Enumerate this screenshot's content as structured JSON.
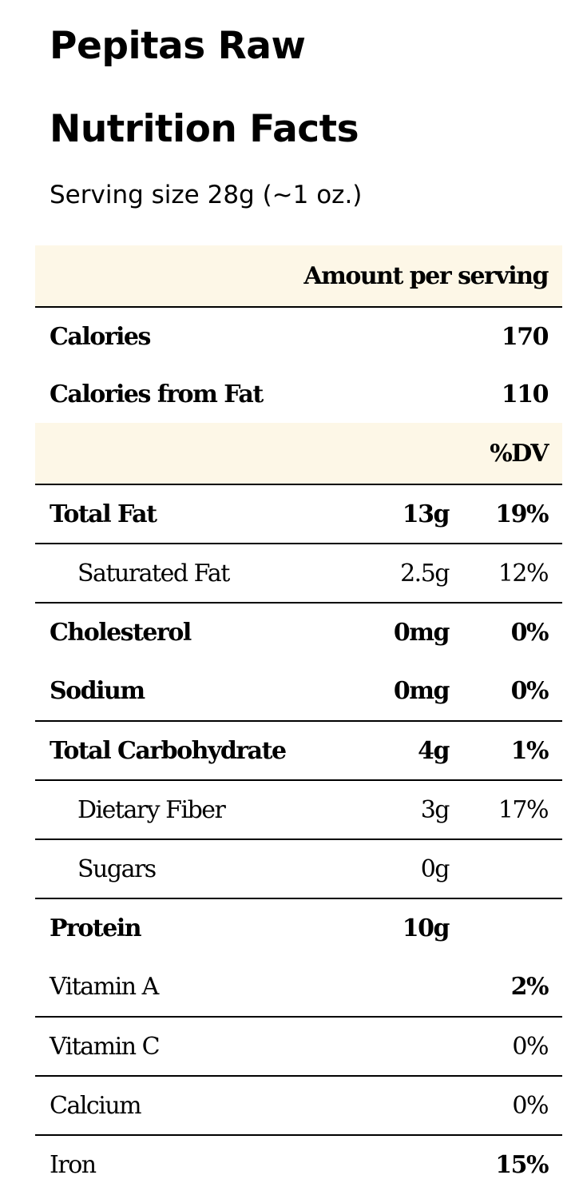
{
  "product": "Pepitas Raw",
  "heading": "Nutrition Facts",
  "serving_size": "Serving size 28g (~1 oz.)",
  "table": {
    "amount_header": "Amount per serving",
    "dv_header": "%DV",
    "calories": {
      "label": "Calories",
      "value": "170"
    },
    "calories_fat": {
      "label": "Calories from Fat",
      "value": "110"
    },
    "nutrients": [
      {
        "label": "Total Fat",
        "amount": "13g",
        "dv": "19%"
      },
      {
        "label": "Saturated Fat",
        "amount": "2.5g",
        "dv": "12%"
      },
      {
        "label": "Cholesterol",
        "amount": "0mg",
        "dv": "0%"
      },
      {
        "label": "Sodium",
        "amount": "0mg",
        "dv": "0%"
      },
      {
        "label": "Total Carbohydrate",
        "amount": "4g",
        "dv": "1%"
      },
      {
        "label": "Dietary Fiber",
        "amount": "3g",
        "dv": "17%"
      },
      {
        "label": "Sugars",
        "amount": "0g",
        "dv": ""
      },
      {
        "label": "Protein",
        "amount": "10g",
        "dv": ""
      }
    ],
    "vitamins": [
      {
        "label": "Vitamin A",
        "dv": "2%"
      },
      {
        "label": "Vitamin C",
        "dv": "0%"
      },
      {
        "label": "Calcium",
        "dv": "0%"
      },
      {
        "label": "Iron",
        "dv": "15%"
      }
    ]
  }
}
